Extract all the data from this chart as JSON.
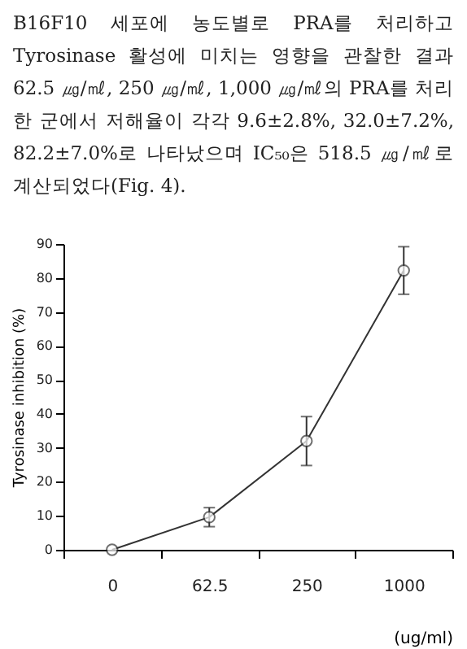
{
  "chart_data": {
    "type": "line",
    "annotations": [
      "B16F10 세포에 농도별로 PRA를 처리하고 Tyrosinase 활성에 미치는 영향을 관찰한 결과 62.5 ㎍/㎖, 250 ㎍/㎖, 1,000 ㎍/㎖의 PRA를 처리한 군에서 저해율이 각각 9.6±2.8%, 32.0±7.2%, 82.2±7.0%로 나타났으며 IC₅₀은 518.5 ㎍/㎖로 계산되었다(Fig. 4)."
    ],
    "categories": [
      "0",
      "62.5",
      "250",
      "1000"
    ],
    "xlabel": "(ug/ml)",
    "ylabel": "Tyrosinase inhibition (%)",
    "series": [
      {
        "color": "#333333",
        "values": [
          0,
          9.6,
          32.0,
          82.2
        ],
        "errors": [
          null,
          2.8,
          7.2,
          7.0
        ]
      }
    ],
    "ylim": [
      0,
      90
    ],
    "yticks": [
      0,
      10,
      20,
      30,
      40,
      50,
      60,
      70,
      80,
      90
    ],
    "marker": "circle",
    "grid": false
  }
}
